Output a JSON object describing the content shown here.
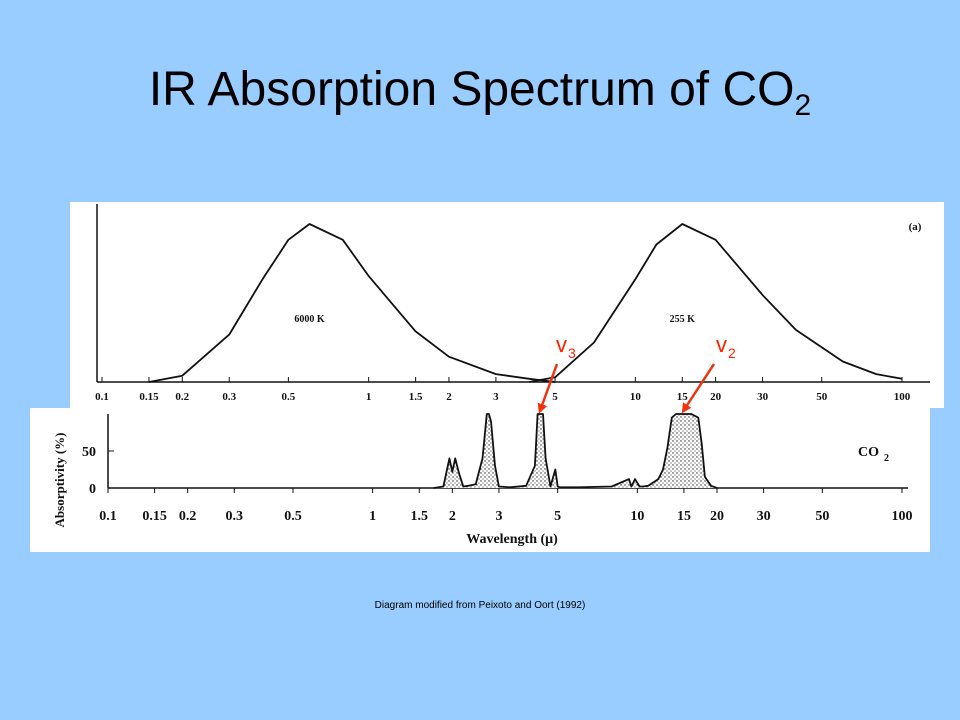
{
  "title": {
    "text": "IR Absorption Spectrum of CO",
    "subscript": "2"
  },
  "caption": "Diagram modified from Peixoto and Oort (1992)",
  "colors": {
    "background": "#99ccff",
    "panel": "#ffffff",
    "arrow": "#ee3311",
    "ink": "#111111"
  },
  "chart_data": [
    {
      "type": "line",
      "panel_tag": "(a)",
      "x_scale": "log",
      "xlim": [
        0.1,
        100
      ],
      "x_ticks": [
        "0.1",
        "0.15",
        "0.2",
        "0.3",
        "0.5",
        "1",
        "1.5",
        "2",
        "3",
        "5",
        "10",
        "15",
        "20",
        "30",
        "50",
        "100"
      ],
      "series": [
        {
          "name": "6000 K",
          "peak_wavelength": 0.6,
          "x": [
            0.15,
            0.2,
            0.3,
            0.4,
            0.5,
            0.6,
            0.8,
            1.0,
            1.5,
            2.0,
            3.0,
            4.0,
            5.0
          ],
          "y": [
            0.0,
            0.04,
            0.3,
            0.65,
            0.9,
            1.0,
            0.9,
            0.67,
            0.32,
            0.16,
            0.05,
            0.02,
            0.0
          ]
        },
        {
          "name": "255 K",
          "peak_wavelength": 15,
          "x": [
            4,
            5,
            7,
            10,
            12,
            15,
            20,
            30,
            40,
            60,
            80,
            100
          ],
          "y": [
            0.0,
            0.03,
            0.25,
            0.65,
            0.87,
            1.0,
            0.9,
            0.55,
            0.33,
            0.13,
            0.05,
            0.02
          ]
        }
      ],
      "annotations": [
        {
          "label": "v",
          "subscript": "3",
          "points_to_wavelength": 4.3
        },
        {
          "label": "v",
          "subscript": "2",
          "points_to_wavelength": 15
        }
      ]
    },
    {
      "type": "area",
      "ylabel": "Absorptivity (%)",
      "xlabel": "Wavelength (μ)",
      "x_scale": "log",
      "xlim": [
        0.1,
        100
      ],
      "ylim": [
        0,
        100
      ],
      "y_ticks": [
        "0",
        "50"
      ],
      "x_ticks": [
        "0.1",
        "0.15",
        "0.2",
        "0.3",
        "0.5",
        "1",
        "1.5",
        "2",
        "3",
        "5",
        "10",
        "15",
        "20",
        "30",
        "50",
        "100"
      ],
      "series": [
        {
          "name": "CO2",
          "x": [
            1.7,
            1.85,
            1.95,
            2.0,
            2.05,
            2.12,
            2.2,
            2.3,
            2.45,
            2.6,
            2.7,
            2.75,
            2.8,
            2.9,
            3.0,
            3.3,
            3.8,
            4.1,
            4.2,
            4.3,
            4.4,
            4.5,
            4.7,
            4.9,
            5.0,
            5.1,
            6.0,
            8.0,
            9.3,
            9.5,
            9.8,
            10.2,
            10.5,
            11,
            12,
            12.5,
            13.0,
            13.5,
            14,
            15,
            16,
            17,
            17.5,
            18,
            19,
            20
          ],
          "y": [
            0,
            2,
            40,
            22,
            40,
            20,
            2,
            3,
            5,
            40,
            100,
            100,
            90,
            30,
            2,
            1,
            3,
            30,
            100,
            100,
            100,
            40,
            2,
            25,
            2,
            1,
            1,
            2,
            12,
            2,
            12,
            2,
            2,
            3,
            12,
            25,
            55,
            95,
            100,
            100,
            100,
            95,
            60,
            15,
            3,
            0
          ]
        }
      ],
      "legend": "right",
      "legend_label": "CO",
      "legend_subscript": "2"
    }
  ]
}
